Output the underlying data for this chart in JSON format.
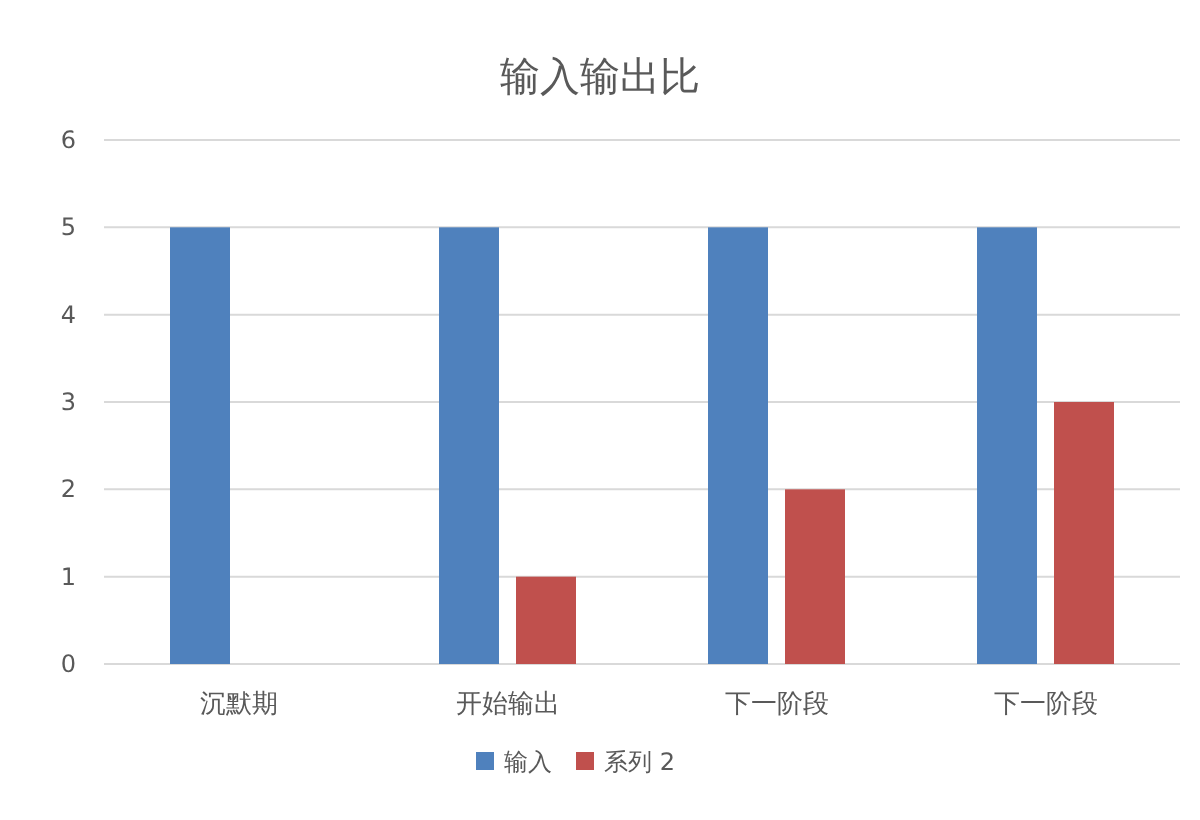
{
  "chart_data": {
    "type": "bar",
    "title": "输入输出比",
    "categories": [
      "沉默期",
      "开始输出",
      "下一阶段",
      "下一阶段"
    ],
    "series": [
      {
        "name": "输入",
        "color": "#4f81bd",
        "values": [
          5,
          5,
          5,
          5
        ]
      },
      {
        "name": "系列 2",
        "color": "#c0504d",
        "values": [
          0,
          1,
          2,
          3
        ]
      }
    ],
    "ylim": [
      0,
      6
    ],
    "yticks": [
      0,
      1,
      2,
      3,
      4,
      5,
      6
    ],
    "grid": "y",
    "legend": "bottom"
  }
}
